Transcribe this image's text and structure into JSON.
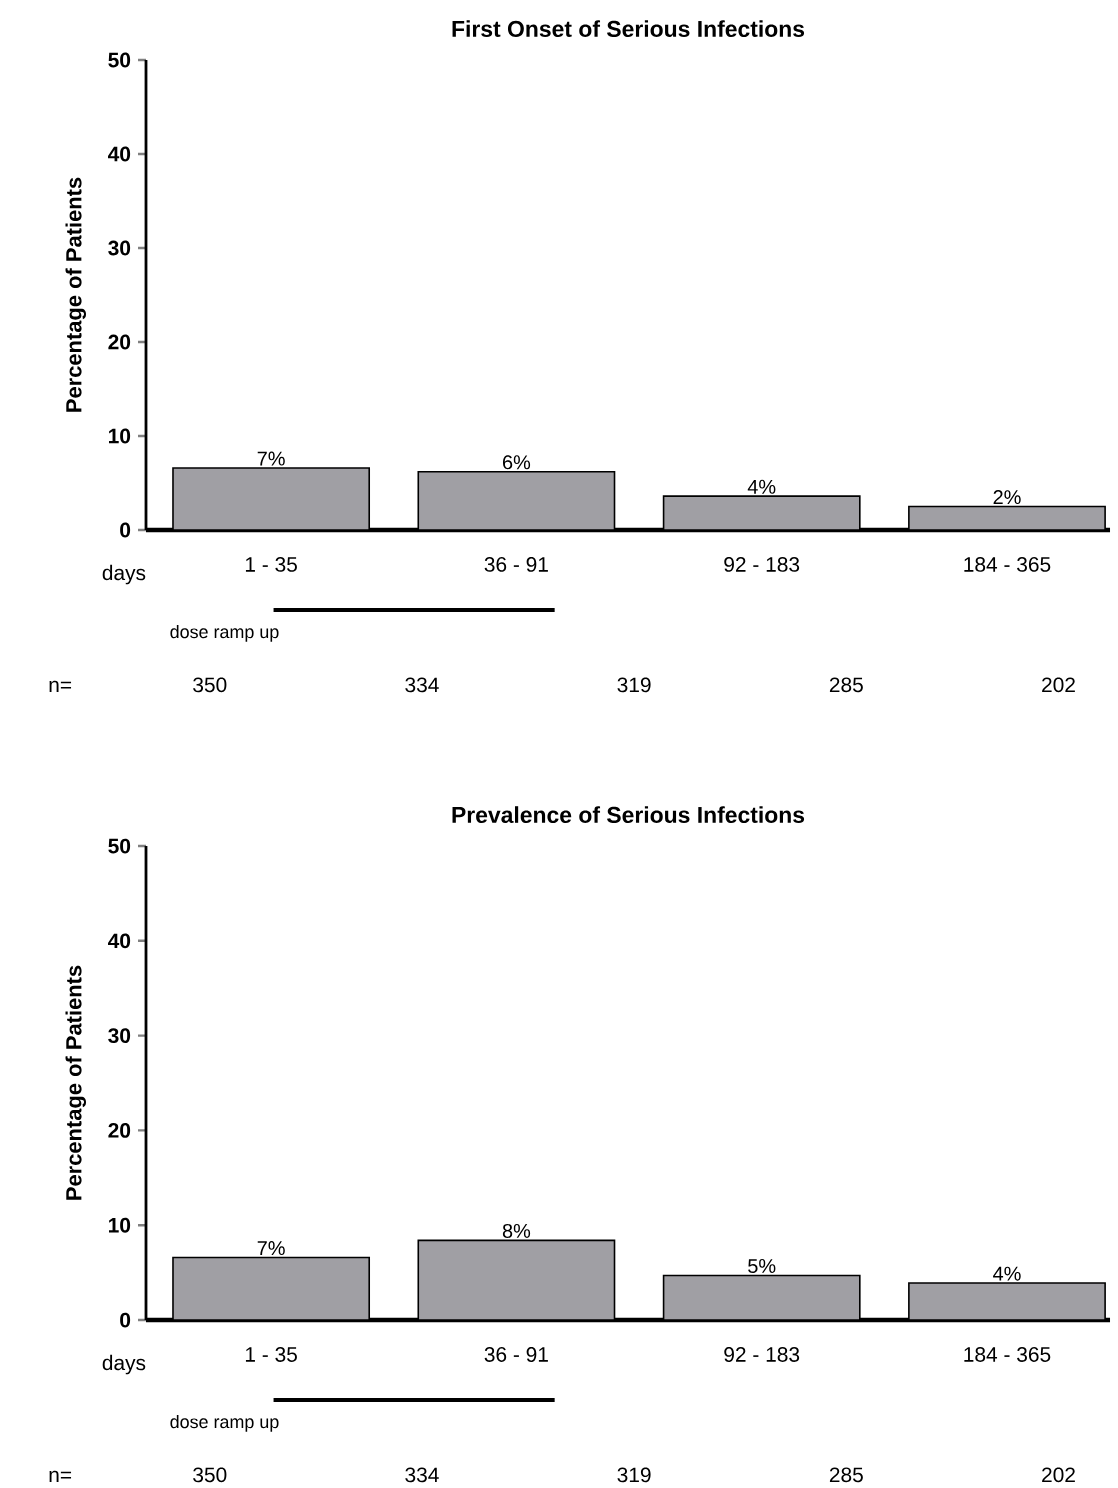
{
  "chart_data": [
    {
      "type": "bar",
      "title": "First Onset of Serious Infections",
      "ylabel": "Percentage of  Patients",
      "categories": [
        "1 - 35",
        "36 - 91",
        "92 - 183",
        "184 - 365"
      ],
      "values": [
        6.6,
        6.2,
        3.6,
        2.5
      ],
      "value_labels": [
        "7%",
        "6%",
        "4%",
        "2%"
      ],
      "color": "#a09fa4",
      "ylim": [
        0,
        50
      ],
      "yticks": [
        0,
        10,
        20,
        30,
        40,
        50
      ],
      "annotations": [
        "days",
        "dose ramp up",
        "n=",
        "350",
        "334",
        "319",
        "285",
        "202"
      ]
    },
    {
      "type": "bar",
      "title": "Prevalence of Serious Infections",
      "ylabel": "Percentage of  Patients",
      "categories": [
        "1 - 35",
        "36 - 91",
        "92 - 183",
        "184 - 365"
      ],
      "values": [
        6.6,
        8.4,
        4.7,
        3.9
      ],
      "value_labels": [
        "7%",
        "8%",
        "5%",
        "4%"
      ],
      "color": "#a09fa4",
      "ylim": [
        0,
        50
      ],
      "yticks": [
        0,
        10,
        20,
        30,
        40,
        50
      ],
      "annotations": [
        "days",
        "dose ramp up",
        "n=",
        "350",
        "334",
        "319",
        "285",
        "202"
      ]
    }
  ]
}
